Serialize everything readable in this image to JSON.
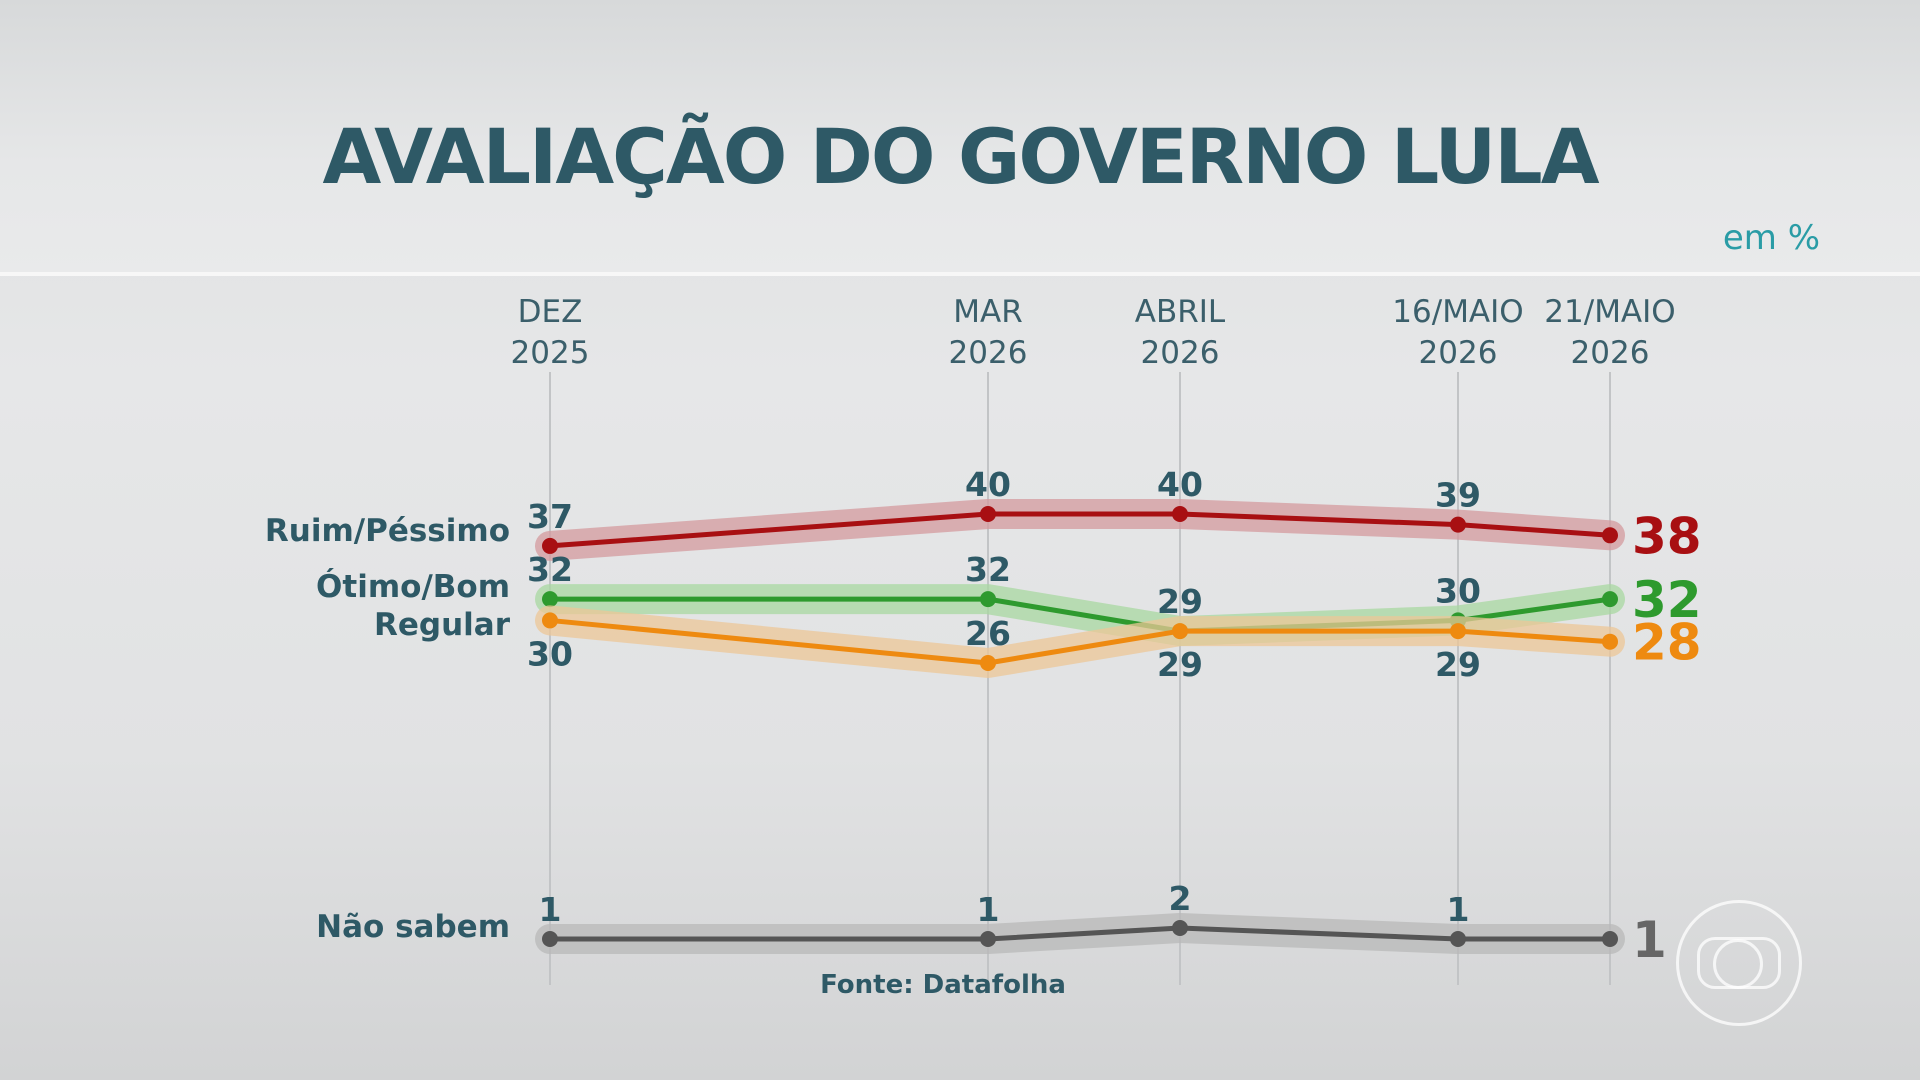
{
  "chart_data": {
    "type": "line",
    "title": "AVALIAÇÃO DO GOVERNO LULA",
    "unit": "em %",
    "source": "Fonte: Datafolha",
    "x": [
      {
        "line1": "DEZ",
        "line2": "2025"
      },
      {
        "line1": "MAR",
        "line2": "2026"
      },
      {
        "line1": "ABRIL",
        "line2": "2026"
      },
      {
        "line1": "16/MAIO",
        "line2": "2026"
      },
      {
        "line1": "21/MAIO",
        "line2": "2026"
      }
    ],
    "series": [
      {
        "name": "Ruim/Péssimo",
        "values": [
          37,
          40,
          40,
          39,
          38
        ],
        "color": "#a80f12",
        "glow": "#d49a9e",
        "label_pos": [
          "above",
          "above",
          "above",
          "above",
          "right"
        ]
      },
      {
        "name": "Ótimo/Bom",
        "values": [
          32,
          32,
          29,
          30,
          32
        ],
        "color": "#2e9a2e",
        "glow": "#a8d8a0",
        "label_pos": [
          "above",
          "above",
          "above",
          "above",
          "right"
        ]
      },
      {
        "name": "Regular",
        "values": [
          30,
          26,
          29,
          29,
          28
        ],
        "color": "#ee8a10",
        "glow": "#ecc797",
        "label_pos": [
          "below",
          "above",
          "below",
          "below",
          "right"
        ]
      },
      {
        "name": "Não sabem",
        "values": [
          1,
          1,
          2,
          1,
          1
        ],
        "color": "#555555",
        "glow": "#b8b8b8",
        "label_pos": [
          "above",
          "above",
          "above",
          "above",
          "right"
        ]
      }
    ]
  }
}
